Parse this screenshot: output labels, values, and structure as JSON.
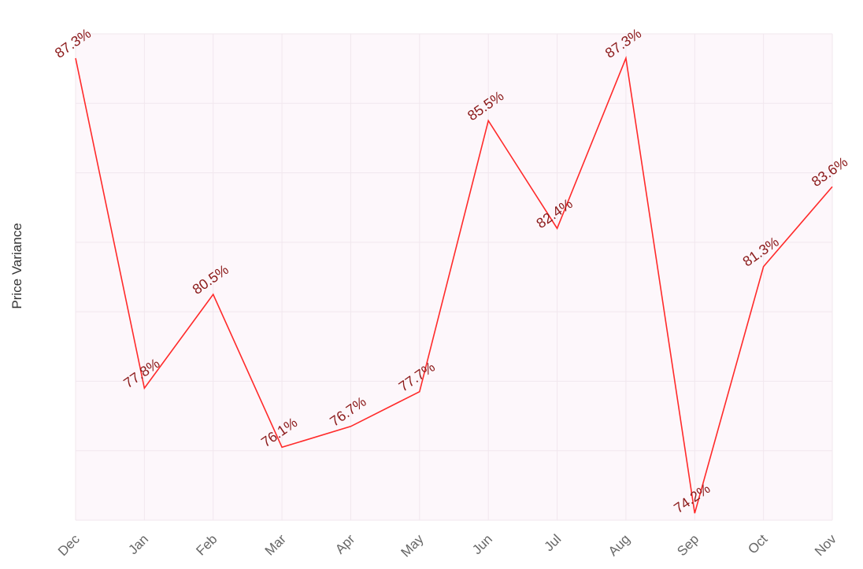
{
  "chart_data": {
    "type": "line",
    "ylabel": "Price Variance",
    "categories": [
      "Dec",
      "Jan",
      "Feb",
      "Mar",
      "Apr",
      "May",
      "Jun",
      "Jul",
      "Aug",
      "Sep",
      "Oct",
      "Nov"
    ],
    "series": [
      {
        "values": [
          87.3,
          77.8,
          80.5,
          76.1,
          76.7,
          77.7,
          85.5,
          82.4,
          87.3,
          74.2,
          81.3,
          83.6
        ],
        "data_labels": [
          "87.3%",
          "77.8%",
          "80.5%",
          "76.1%",
          "76.7%",
          "77.7%",
          "85.5%",
          "82.4%",
          "87.3%",
          "74.2%",
          "81.3%",
          "83.6%"
        ]
      }
    ],
    "ylim": [
      74.0,
      88.0
    ],
    "grid": true,
    "legend": "none",
    "colors": {
      "line": "#ff2a2a",
      "label": "#8b1a1a",
      "plot_background": "#fdf7fb",
      "grid": "#f1e7ee"
    }
  }
}
